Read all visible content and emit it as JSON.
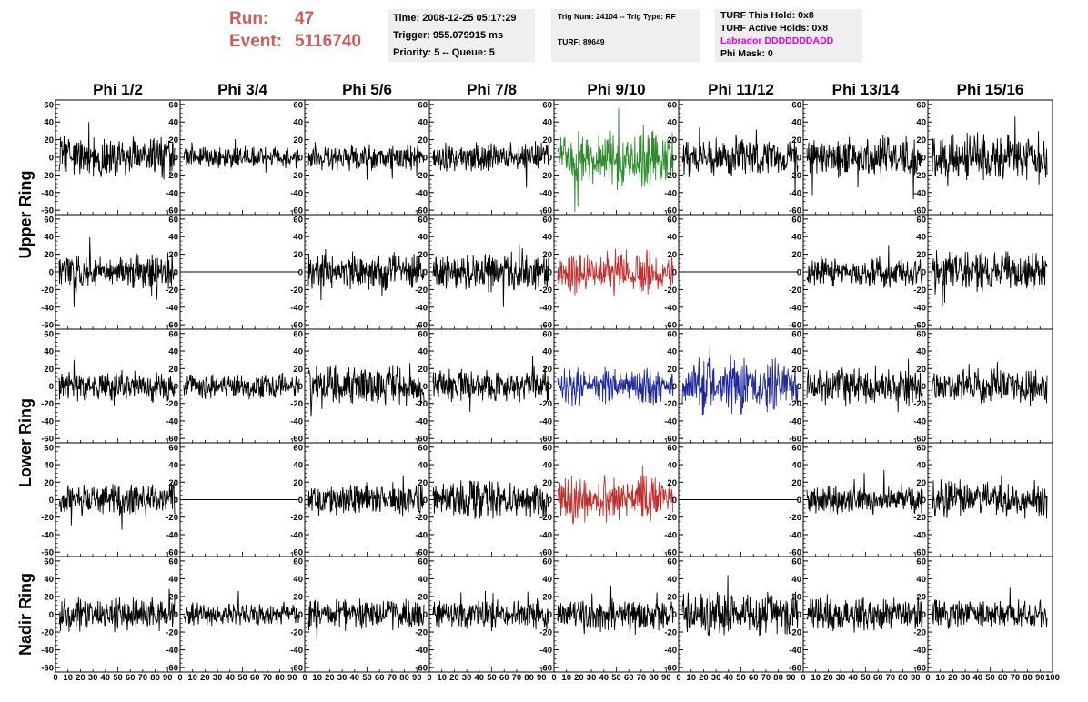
{
  "header": {
    "run_label": "Run:",
    "run_value": "47",
    "event_label": "Event:",
    "event_value": "5116740",
    "time_line": "Time: 2008-12-25 05:17:29",
    "trigger_line": "Trigger: 955.079915 ms",
    "priority_line": "Priority: 5 -- Queue: 5",
    "trig_line": "Trig Num: 24104 -- Trig Type: RF",
    "turf_line": "TURF: 89649",
    "turf_hold_line": "TURF This Hold: 0x8",
    "turf_active_line": "TURF Active Holds: 0x8",
    "labrador_line": "Labrador DDDDDDDADD",
    "phi_mask_line": "Phi Mask: 0"
  },
  "colors": {
    "header_red": "#cd5c5c",
    "info_bg": "#efefef",
    "labrador": "#e000e0",
    "trace_default": "#000000",
    "trace_green": "#2e8b2e",
    "trace_red": "#c0302e",
    "trace_blue": "#1e2a9a"
  },
  "chart_data": {
    "type": "line",
    "column_titles": [
      "Phi 1/2",
      "Phi 3/4",
      "Phi 5/6",
      "Phi 7/8",
      "Phi 9/10",
      "Phi 11/12",
      "Phi 13/14",
      "Phi 15/16"
    ],
    "row_titles": [
      "Upper Ring",
      "Lower Ring",
      "Nadir Ring"
    ],
    "xlim": [
      0,
      100
    ],
    "ylim": [
      -65,
      65
    ],
    "y_ticks": [
      -60,
      -40,
      -20,
      0,
      20,
      40,
      60
    ],
    "x_ticks": [
      0,
      10,
      20,
      30,
      40,
      50,
      60,
      70,
      80,
      90,
      100
    ],
    "grid": false,
    "panels": [
      {
        "row": 0,
        "col": 0,
        "color": "black",
        "amp": 16,
        "seed": 11
      },
      {
        "row": 0,
        "col": 1,
        "color": "black",
        "amp": 9,
        "seed": 12
      },
      {
        "row": 0,
        "col": 2,
        "color": "black",
        "amp": 11,
        "seed": 13
      },
      {
        "row": 0,
        "col": 3,
        "color": "black",
        "amp": 12,
        "seed": 14
      },
      {
        "row": 0,
        "col": 4,
        "color": "green",
        "amp": 26,
        "seed": 15
      },
      {
        "row": 0,
        "col": 5,
        "color": "black",
        "amp": 15,
        "seed": 16
      },
      {
        "row": 0,
        "col": 6,
        "color": "black",
        "amp": 17,
        "seed": 17
      },
      {
        "row": 0,
        "col": 7,
        "color": "black",
        "amp": 19,
        "seed": 18
      },
      {
        "row": 1,
        "col": 0,
        "color": "black",
        "amp": 15,
        "seed": 21
      },
      {
        "row": 1,
        "col": 1,
        "color": "black",
        "amp": 0,
        "seed": 22
      },
      {
        "row": 1,
        "col": 2,
        "color": "black",
        "amp": 15,
        "seed": 23
      },
      {
        "row": 1,
        "col": 3,
        "color": "black",
        "amp": 15,
        "seed": 24
      },
      {
        "row": 1,
        "col": 4,
        "color": "red",
        "amp": 19,
        "seed": 25
      },
      {
        "row": 1,
        "col": 5,
        "color": "black",
        "amp": 0,
        "seed": 26
      },
      {
        "row": 1,
        "col": 6,
        "color": "black",
        "amp": 12,
        "seed": 27
      },
      {
        "row": 1,
        "col": 7,
        "color": "black",
        "amp": 17,
        "seed": 28
      },
      {
        "row": 2,
        "col": 0,
        "color": "black",
        "amp": 13,
        "seed": 31
      },
      {
        "row": 2,
        "col": 1,
        "color": "black",
        "amp": 10,
        "seed": 32
      },
      {
        "row": 2,
        "col": 2,
        "color": "black",
        "amp": 17,
        "seed": 33
      },
      {
        "row": 2,
        "col": 3,
        "color": "black",
        "amp": 13,
        "seed": 34
      },
      {
        "row": 2,
        "col": 4,
        "color": "blue",
        "amp": 17,
        "seed": 35
      },
      {
        "row": 2,
        "col": 5,
        "color": "blue",
        "amp": 24,
        "seed": 36
      },
      {
        "row": 2,
        "col": 6,
        "color": "black",
        "amp": 15,
        "seed": 37
      },
      {
        "row": 2,
        "col": 7,
        "color": "black",
        "amp": 14,
        "seed": 38
      },
      {
        "row": 3,
        "col": 0,
        "color": "black",
        "amp": 13,
        "seed": 41
      },
      {
        "row": 3,
        "col": 1,
        "color": "black",
        "amp": 0,
        "seed": 42
      },
      {
        "row": 3,
        "col": 2,
        "color": "black",
        "amp": 13,
        "seed": 43
      },
      {
        "row": 3,
        "col": 3,
        "color": "black",
        "amp": 15,
        "seed": 44
      },
      {
        "row": 3,
        "col": 4,
        "color": "red",
        "amp": 21,
        "seed": 45
      },
      {
        "row": 3,
        "col": 5,
        "color": "black",
        "amp": 0,
        "seed": 46
      },
      {
        "row": 3,
        "col": 6,
        "color": "black",
        "amp": 12,
        "seed": 47
      },
      {
        "row": 3,
        "col": 7,
        "color": "black",
        "amp": 16,
        "seed": 48
      },
      {
        "row": 4,
        "col": 0,
        "color": "black",
        "amp": 14,
        "seed": 51
      },
      {
        "row": 4,
        "col": 1,
        "color": "black",
        "amp": 9,
        "seed": 52
      },
      {
        "row": 4,
        "col": 2,
        "color": "black",
        "amp": 12,
        "seed": 53
      },
      {
        "row": 4,
        "col": 3,
        "color": "black",
        "amp": 12,
        "seed": 54
      },
      {
        "row": 4,
        "col": 4,
        "color": "black",
        "amp": 13,
        "seed": 55
      },
      {
        "row": 4,
        "col": 5,
        "color": "black",
        "amp": 17,
        "seed": 56
      },
      {
        "row": 4,
        "col": 6,
        "color": "black",
        "amp": 15,
        "seed": 57
      },
      {
        "row": 4,
        "col": 7,
        "color": "black",
        "amp": 11,
        "seed": 58
      }
    ]
  }
}
